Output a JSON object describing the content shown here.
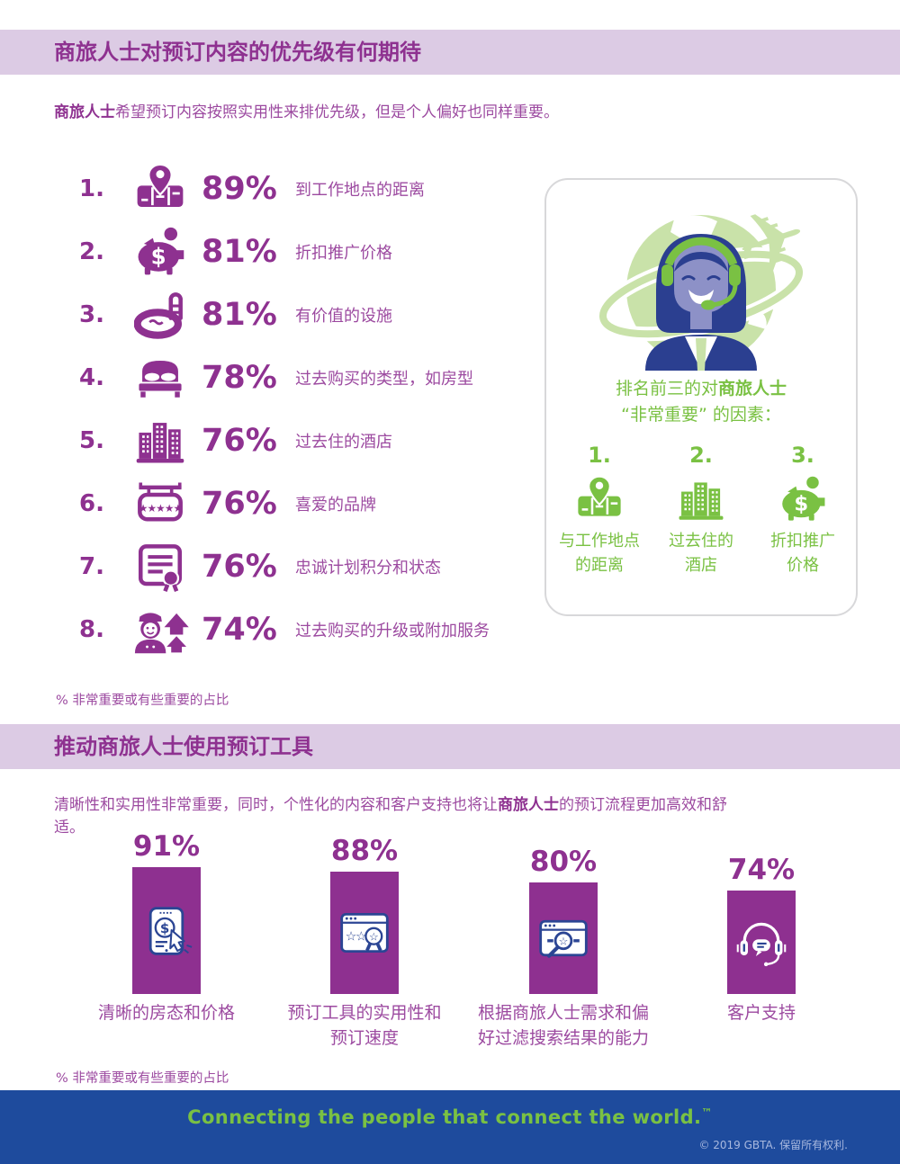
{
  "colors": {
    "purple_dark": "#8e3190",
    "purple_medium": "#9c4aa0",
    "purple_bar": "#8e3090",
    "band_bg": "#dccbe4",
    "green": "#7ac143",
    "green_light": "#c9e2a9",
    "navy": "#2b4594",
    "footer_blue": "#1e4b9d"
  },
  "section1": {
    "header": "商旅人士对预订内容的优先级有何期待",
    "intro": {
      "bold": "商旅人士",
      "rest": "希望预订内容按照实用性来排优先级，但是个人偏好也同样重要。"
    },
    "items": [
      {
        "rank": "1.",
        "pct": "89%",
        "label": "到工作地点的距离",
        "icon": "map-location-icon"
      },
      {
        "rank": "2.",
        "pct": "81%",
        "label": "折扣推广价格",
        "icon": "piggy-bank-icon"
      },
      {
        "rank": "3.",
        "pct": "81%",
        "label": "有价值的设施",
        "icon": "swimming-pool-icon"
      },
      {
        "rank": "4.",
        "pct": "78%",
        "label": "过去购买的类型，如房型",
        "icon": "bed-icon"
      },
      {
        "rank": "5.",
        "pct": "76%",
        "label": "过去住的酒店",
        "icon": "hotel-buildings-icon"
      },
      {
        "rank": "6.",
        "pct": "76%",
        "label": "喜爱的品牌",
        "icon": "brand-sign-icon"
      },
      {
        "rank": "7.",
        "pct": "76%",
        "label": "忠诚计划积分和状态",
        "icon": "loyalty-certificate-icon"
      },
      {
        "rank": "8.",
        "pct": "74%",
        "label": "过去购买的升级或附加服务",
        "icon": "bellhop-upgrade-icon"
      }
    ],
    "footnote": "% 非常重要或有些重要的占比",
    "panel": {
      "heading_pre": "排名前三的对",
      "heading_bold": "商旅人士",
      "heading_line2": "“非常重要” 的因素：",
      "items": [
        {
          "rank": "1.",
          "line1": "与工作地点",
          "line2": "的距离",
          "icon": "map-location-icon"
        },
        {
          "rank": "2.",
          "line1": "过去住的",
          "line2": "酒店",
          "icon": "hotel-buildings-icon"
        },
        {
          "rank": "3.",
          "line1": "折扣推广",
          "line2": "价格",
          "icon": "piggy-bank-icon"
        }
      ]
    }
  },
  "section2": {
    "header": "推动商旅人士使用预订工具",
    "intro": {
      "pre": "清晰性和实用性非常重要，同时，个性化的内容和客户支持也将让",
      "bold": "商旅人士",
      "post": "的预订流程更加高效和舒适。"
    },
    "bars": [
      {
        "pct": "91%",
        "value": 91,
        "line1": "清晰的房态和价格",
        "line2": "",
        "icon": "tablet-price-icon"
      },
      {
        "pct": "88%",
        "value": 88,
        "line1": "预订工具的实用性和",
        "line2": "预订速度",
        "icon": "booking-tool-award-icon"
      },
      {
        "pct": "80%",
        "value": 80,
        "line1": "根据商旅人士需求和偏",
        "line2": "好过滤搜索结果的能力",
        "icon": "search-filter-icon"
      },
      {
        "pct": "74%",
        "value": 74,
        "line1": "客户支持",
        "line2": "",
        "icon": "customer-support-headset-icon"
      }
    ],
    "footnote": "% 非常重要或有些重要的占比"
  },
  "chart_data": {
    "type": "bar",
    "title": "推动商旅人士使用预订工具",
    "categories": [
      "清晰的房态和价格",
      "预订工具的实用性和预订速度",
      "根据商旅人士需求和偏好过滤搜索结果的能力",
      "客户支持"
    ],
    "values": [
      91,
      88,
      80,
      74
    ],
    "value_format": "percent",
    "ylim": [
      0,
      100
    ],
    "note": "% 非常重要或有些重要的占比"
  },
  "footer": {
    "tagline": "Connecting the people that connect the world.",
    "tm": "™",
    "copyright": "© 2019 GBTA. 保留所有权利."
  }
}
